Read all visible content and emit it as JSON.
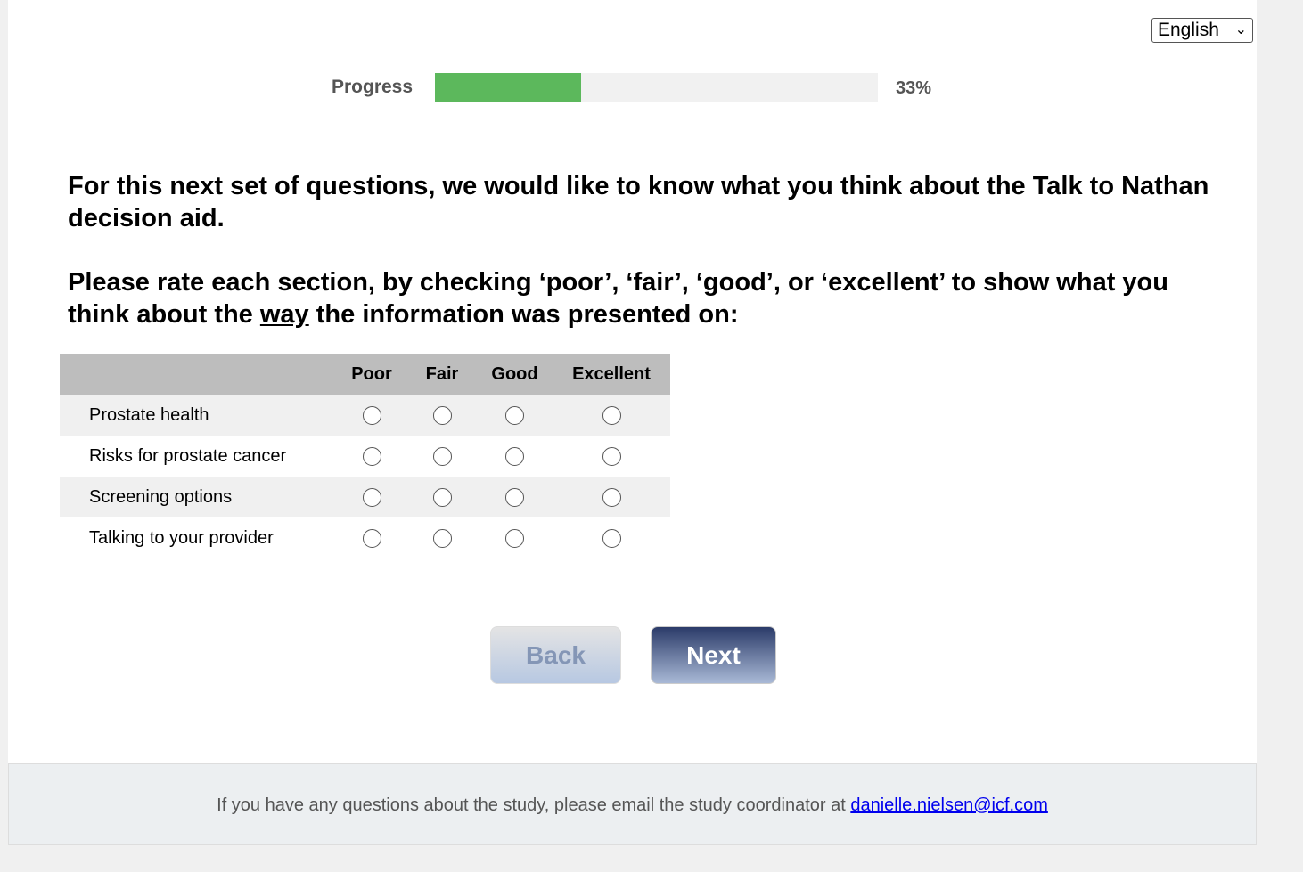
{
  "language": {
    "selected": "English"
  },
  "progress": {
    "label": "Progress",
    "percent": 33,
    "text": "33%",
    "fill_color": "#5cb85c"
  },
  "intro": "For this next set of questions, we would like to know what you think about the Talk to Nathan decision aid.",
  "instruction": {
    "before": "Please rate each section, by checking ‘poor’, ‘fair’, ‘good’, or ‘excellent’ to show what you think about the ",
    "emphasis": "way",
    "after": " the information was presented on:"
  },
  "table": {
    "columns": [
      "Poor",
      "Fair",
      "Good",
      "Excellent"
    ],
    "rows": [
      "Prostate health",
      "Risks for prostate cancer",
      "Screening options",
      "Talking to your provider"
    ]
  },
  "buttons": {
    "back": "Back",
    "next": "Next"
  },
  "footer": {
    "text": "If you have any questions about the study, please email the study coordinator at ",
    "email": "danielle.nielsen@icf.com"
  }
}
